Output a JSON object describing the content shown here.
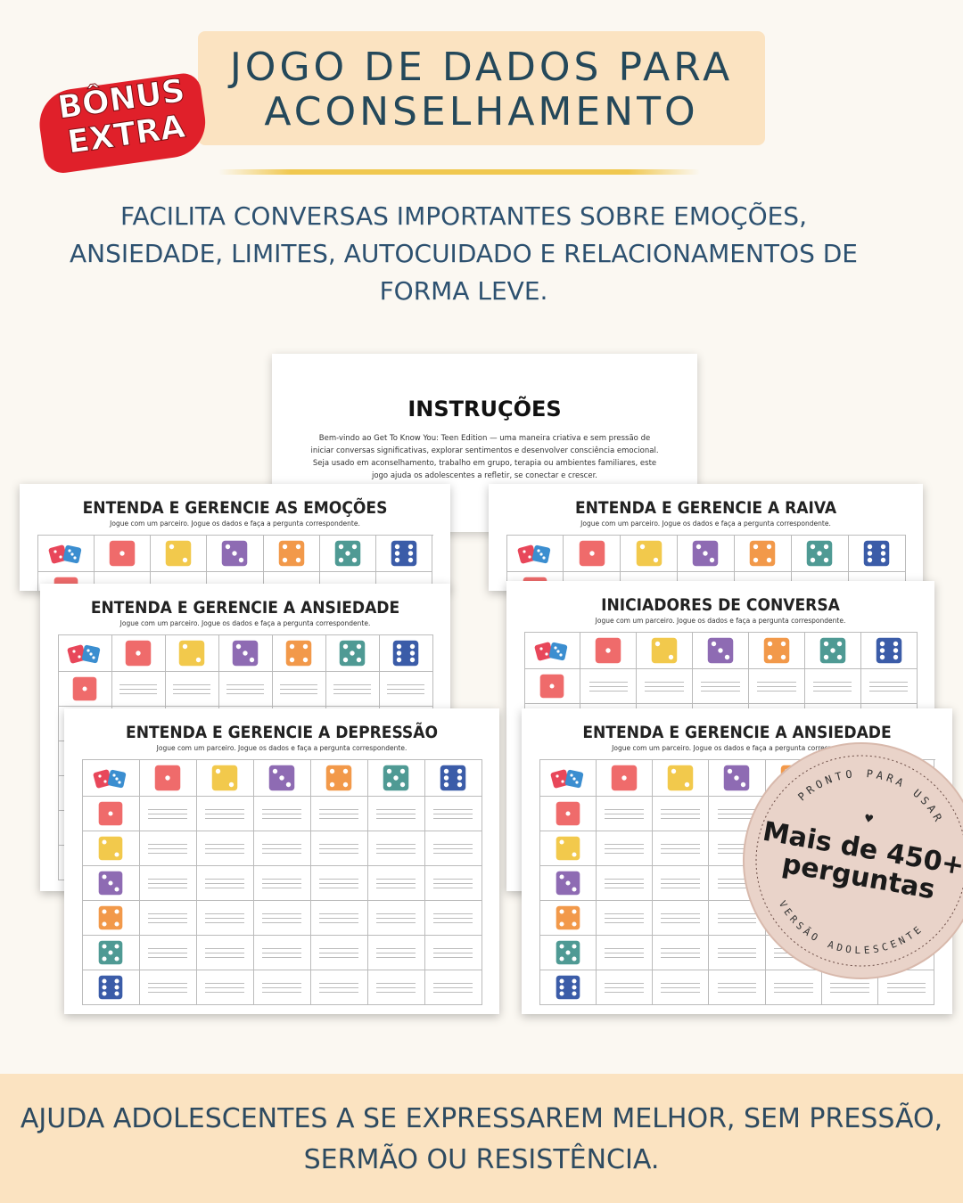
{
  "header": {
    "badge": [
      "BÔNUS",
      "EXTRA"
    ],
    "title": [
      "JOGO DE DADOS PARA",
      "ACONSELHAMENTO"
    ]
  },
  "subtitle": [
    "FACILITA CONVERSAS IMPORTANTES SOBRE EMOÇÕES,",
    "ANSIEDADE, LIMITES, AUTOCUIDADO E RELACIONAMENTOS DE",
    "FORMA LEVE."
  ],
  "instructions": {
    "title": "INSTRUÇÕES",
    "text": [
      "Bem-vindo ao Get To Know You: Teen Edition — uma maneira criativa e sem pressão de",
      "iniciar conversas significativas, explorar sentimentos e desenvolver consciência emocional.",
      "Seja usado em aconselhamento, trabalho em grupo, terapia ou ambientes familiares, este",
      "jogo ajuda os adolescentes a refletir, se conectar e crescer."
    ]
  },
  "sheets": [
    {
      "title": "ENTENDA E GERENCIE AS EMOÇÕES",
      "subtitle": "Jogue com um parceiro. Jogue os dados e faça a pergunta correspondente."
    },
    {
      "title": "ENTENDA E GERENCIE A RAIVA",
      "subtitle": "Jogue com um parceiro. Jogue os dados e faça a pergunta correspondente."
    },
    {
      "title": "ENTENDA E GERENCIE A ANSIEDADE",
      "subtitle": "Jogue com um parceiro. Jogue os dados e faça a pergunta correspondente."
    },
    {
      "title": "INICIADORES DE CONVERSA",
      "subtitle": "Jogue com um parceiro. Jogue os dados e faça a pergunta correspondente."
    },
    {
      "title": "ENTENDA E GERENCIE A DEPRESSÃO",
      "subtitle": "Jogue com um parceiro. Jogue os dados e faça a pergunta correspondente."
    },
    {
      "title": "ENTENDA E GERENCIE A ANSIEDADE",
      "subtitle": "Jogue com um parceiro. Jogue os dados e faça a pergunta correspondente."
    }
  ],
  "stamp": {
    "top": "PRONTO PARA USAR",
    "main": [
      "Mais de 450+",
      "perguntas"
    ],
    "bottom": "VERSÃO ADOLESCENTE"
  },
  "footer": [
    "AJUDA ADOLESCENTES A SE EXPRESSAREM MELHOR, SEM PRESSÃO,",
    "SERMÃO OU RESISTÊNCIA."
  ]
}
